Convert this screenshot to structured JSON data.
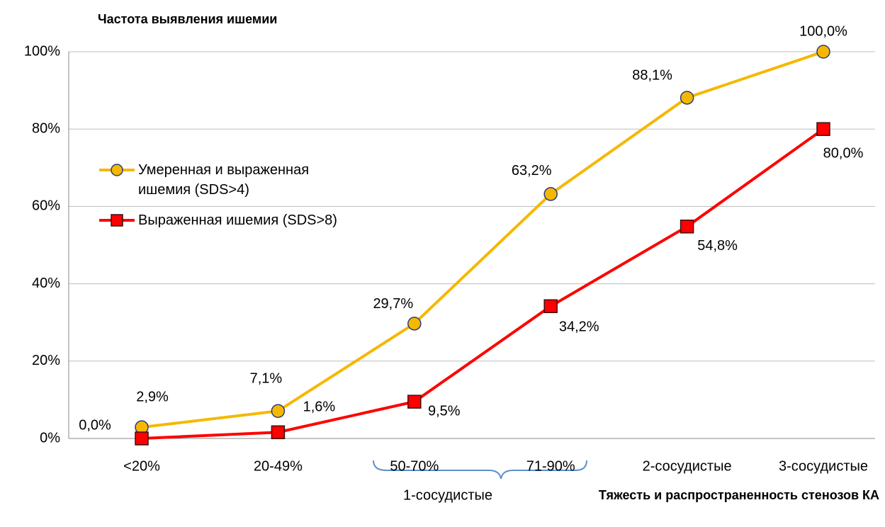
{
  "chart_data": {
    "type": "line",
    "y_label": "Частота выявления ишемии",
    "x_label": "Тяжесть и распространенность стенозов КА",
    "annotations": [
      "1-сосудистые"
    ],
    "categories": [
      "<20%",
      "20-49%",
      "50-70%",
      "71-90%",
      "2-сосудистые",
      "3-сосудистые"
    ],
    "series": [
      {
        "name": "Умеренная и выраженная ишемия (SDS>4)",
        "color": "#f5b800",
        "marker": "circle",
        "values": [
          2.9,
          7.1,
          29.7,
          63.2,
          88.1,
          100.0
        ],
        "value_labels": [
          "2,9%",
          "7,1%",
          "29,7%",
          "63,2%",
          "88,1%",
          "100,0%"
        ]
      },
      {
        "name": "Выраженная ишемия (SDS>8)",
        "color": "#ff0000",
        "marker": "square",
        "values": [
          0.0,
          1.6,
          9.5,
          34.2,
          54.8,
          80.0
        ],
        "value_labels": [
          "0,0%",
          "1,6%",
          "9,5%",
          "34,2%",
          "54,8%",
          "80,0%"
        ]
      }
    ],
    "ylim": [
      0,
      100
    ],
    "yticks": [
      {
        "value": 0,
        "label": "0%"
      },
      {
        "value": 20,
        "label": "20%"
      },
      {
        "value": 40,
        "label": "40%"
      },
      {
        "value": 60,
        "label": "60%"
      },
      {
        "value": 80,
        "label": "80%"
      },
      {
        "value": 100,
        "label": "100%"
      }
    ],
    "grid": true
  }
}
